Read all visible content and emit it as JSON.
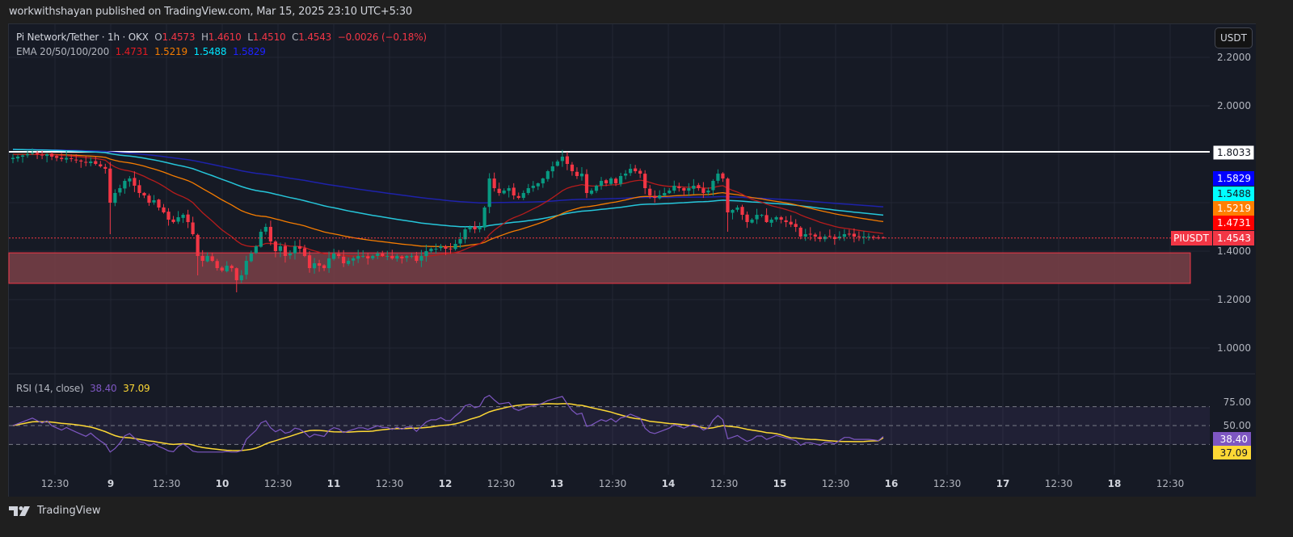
{
  "header": {
    "published_text": "workwithshayan published on TradingView.com, Mar 15, 2025 23:10 UTC+5:30"
  },
  "legend": {
    "symbol": "Pi Network/Tether · 1h · OKX",
    "open_label": "O",
    "open": "1.4573",
    "high_label": "H",
    "high": "1.4610",
    "low_label": "L",
    "low": "1.4510",
    "close_label": "C",
    "close": "1.4543",
    "change": "−0.0026 (−0.18%)",
    "ema_label": "EMA 20/50/100/200",
    "ema20": "1.4731",
    "ema50": "1.5219",
    "ema100": "1.5488",
    "ema200": "1.5829"
  },
  "rsi_legend": {
    "label": "RSI (14, close)",
    "rsi": "38.40",
    "ma": "37.09"
  },
  "currency_button": "USDT",
  "footer": {
    "brand": "TradingView"
  },
  "colors": {
    "bg": "#161a25",
    "grid": "#232733",
    "text": "#b2b5be",
    "up": "#089981",
    "down": "#f23645",
    "ema20": "#b71c1c",
    "ema50": "#f57c00",
    "ema100": "#26c6da",
    "ema200": "#1e22aa",
    "rsi": "#7e57c2",
    "rsi_ma": "#fdd835",
    "zone_fill": "#7a4148",
    "zone_border": "#f23645",
    "resistance": "#ffffff"
  },
  "chart_data": {
    "type": "candlestick",
    "title": "Pi Network/Tether · 1h · OKX",
    "symbol": "PIUSDT",
    "timeframe": "1h",
    "price_axis": {
      "ticks": [
        "2.2000",
        "2.0000",
        "1.4000",
        "1.2000",
        "1.0000"
      ],
      "range": [
        0.93,
        2.33
      ]
    },
    "time_axis": {
      "ticks": [
        "12:30",
        "9",
        "12:30",
        "10",
        "12:30",
        "11",
        "12:30",
        "12",
        "12:30",
        "13",
        "12:30",
        "14",
        "12:30",
        "15",
        "12:30",
        "16",
        "12:30",
        "17",
        "12:30",
        "18",
        "12:30"
      ]
    },
    "price_labels": [
      {
        "label": "",
        "value": "1.8033",
        "bg": "#ffffff",
        "fg": "#131722"
      },
      {
        "label": "",
        "value": "1.5829",
        "bg": "#0000ff",
        "fg": "#ffffff"
      },
      {
        "label": "",
        "value": "1.5488",
        "bg": "#00ffff",
        "fg": "#131722"
      },
      {
        "label": "",
        "value": "1.5219",
        "bg": "#ff7f00",
        "fg": "#ffffff"
      },
      {
        "label": "",
        "value": "1.4731",
        "bg": "#ff0000",
        "fg": "#ffffff"
      },
      {
        "label": "PIUSDT",
        "value": "1.4543",
        "bg": "#f23645",
        "fg": "#ffffff"
      }
    ],
    "horizontal_line": {
      "price": 1.8033,
      "color": "#ffffff"
    },
    "support_zone": {
      "top": 1.393,
      "bottom": 1.267
    },
    "last_price": 1.4543,
    "close_path": [
      1.785,
      1.79,
      1.795,
      1.8,
      1.805,
      1.8,
      1.795,
      1.8,
      1.79,
      1.785,
      1.78,
      1.785,
      1.78,
      1.775,
      1.77,
      1.765,
      1.77,
      1.76,
      1.75,
      1.74,
      1.6,
      1.64,
      1.66,
      1.69,
      1.7,
      1.67,
      1.64,
      1.63,
      1.6,
      1.61,
      1.58,
      1.56,
      1.53,
      1.52,
      1.54,
      1.55,
      1.52,
      1.47,
      1.38,
      1.36,
      1.38,
      1.36,
      1.33,
      1.32,
      1.34,
      1.33,
      1.28,
      1.3,
      1.36,
      1.39,
      1.42,
      1.48,
      1.5,
      1.44,
      1.4,
      1.42,
      1.38,
      1.39,
      1.42,
      1.41,
      1.38,
      1.33,
      1.35,
      1.34,
      1.33,
      1.37,
      1.39,
      1.38,
      1.35,
      1.36,
      1.37,
      1.38,
      1.38,
      1.37,
      1.38,
      1.39,
      1.38,
      1.38,
      1.37,
      1.38,
      1.37,
      1.38,
      1.38,
      1.36,
      1.38,
      1.4,
      1.41,
      1.41,
      1.42,
      1.41,
      1.41,
      1.43,
      1.45,
      1.49,
      1.5,
      1.49,
      1.5,
      1.58,
      1.7,
      1.66,
      1.64,
      1.65,
      1.66,
      1.63,
      1.62,
      1.64,
      1.66,
      1.67,
      1.68,
      1.7,
      1.73,
      1.75,
      1.77,
      1.79,
      1.76,
      1.73,
      1.71,
      1.72,
      1.64,
      1.65,
      1.67,
      1.69,
      1.68,
      1.7,
      1.68,
      1.71,
      1.72,
      1.74,
      1.73,
      1.72,
      1.66,
      1.63,
      1.62,
      1.63,
      1.64,
      1.65,
      1.67,
      1.66,
      1.65,
      1.66,
      1.67,
      1.66,
      1.64,
      1.65,
      1.69,
      1.72,
      1.7,
      1.56,
      1.57,
      1.58,
      1.55,
      1.52,
      1.53,
      1.55,
      1.55,
      1.52,
      1.53,
      1.54,
      1.53,
      1.52,
      1.51,
      1.5,
      1.46,
      1.47,
      1.47,
      1.46,
      1.45,
      1.46,
      1.46,
      1.45,
      1.46,
      1.47,
      1.47,
      1.46,
      1.46,
      1.46,
      1.46,
      1.458,
      1.455,
      1.4543
    ],
    "ema": {
      "ema20_last": 1.4731,
      "ema50_last": 1.5219,
      "ema100_last": 1.5488,
      "ema200_last": 1.5829
    },
    "rsi": {
      "length": 14,
      "source": "close",
      "last": 38.4,
      "ma_last": 37.09,
      "levels": {
        "upper": 70,
        "middle": 50,
        "lower": 30
      },
      "axis_ticks": [
        "75.00",
        "50.00"
      ]
    }
  }
}
